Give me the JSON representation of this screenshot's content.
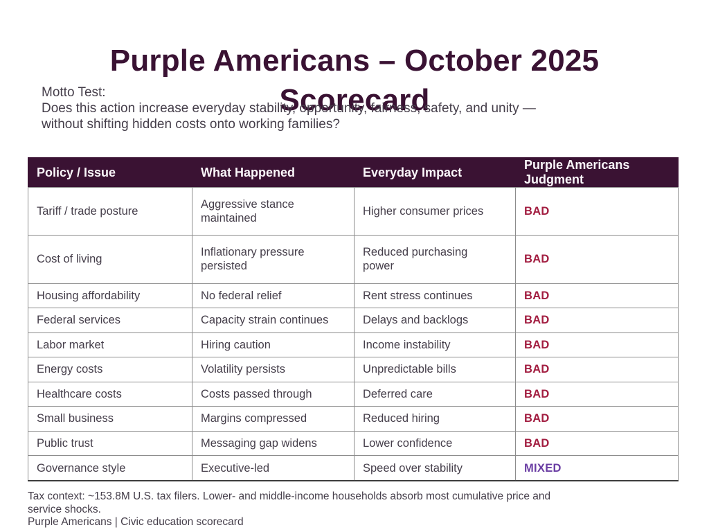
{
  "page": {
    "title": "Purple Americans – October 2025 Scorecard",
    "motto": {
      "label": "Motto Test:",
      "lines": [
        "Does this action increase everyday stability, opportunity, fairness, safety, and unity —",
        "without shifting hidden costs onto working families?"
      ]
    },
    "footer": {
      "tax_context_lines": [
        "Tax context: ~153.8M U.S. tax filers. Lower- and middle-income households absorb most cumulative price and",
        "service shocks."
      ],
      "byline": "Purple Americans | Civic education scorecard"
    }
  },
  "colors": {
    "dark_purple": "#3a1233",
    "header_text": "#faf7fa",
    "body_text": "#453e4a",
    "bad": "#a21d40",
    "mixed": "#6a3da3",
    "grid": "#8c8c8c"
  },
  "table": {
    "columns": [
      "Policy / Issue",
      "What Happened",
      "Everyday Impact",
      "Purple Americans Judgment"
    ],
    "rows": [
      {
        "policy": "Tariff / trade posture",
        "what_happened": "Aggressive stance maintained",
        "impact": "Higher consumer prices",
        "judgment": "BAD"
      },
      {
        "policy": "Cost of living",
        "what_happened": "Inflationary pressure persisted",
        "impact": "Reduced purchasing power",
        "judgment": "BAD"
      },
      {
        "policy": "Housing affordability",
        "what_happened": "No federal relief",
        "impact": "Rent stress continues",
        "judgment": "BAD"
      },
      {
        "policy": "Federal services",
        "what_happened": "Capacity strain continues",
        "impact": "Delays and backlogs",
        "judgment": "BAD"
      },
      {
        "policy": "Labor market",
        "what_happened": "Hiring caution",
        "impact": "Income instability",
        "judgment": "BAD"
      },
      {
        "policy": "Energy costs",
        "what_happened": "Volatility persists",
        "impact": "Unpredictable bills",
        "judgment": "BAD"
      },
      {
        "policy": "Healthcare costs",
        "what_happened": "Costs passed through",
        "impact": "Deferred care",
        "judgment": "BAD"
      },
      {
        "policy": "Small business",
        "what_happened": "Margins compressed",
        "impact": "Reduced hiring",
        "judgment": "BAD"
      },
      {
        "policy": "Public trust",
        "what_happened": "Messaging gap widens",
        "impact": "Lower confidence",
        "judgment": "BAD"
      },
      {
        "policy": "Governance style",
        "what_happened": "Executive-led",
        "impact": "Speed over stability",
        "judgment": "MIXED"
      }
    ]
  }
}
